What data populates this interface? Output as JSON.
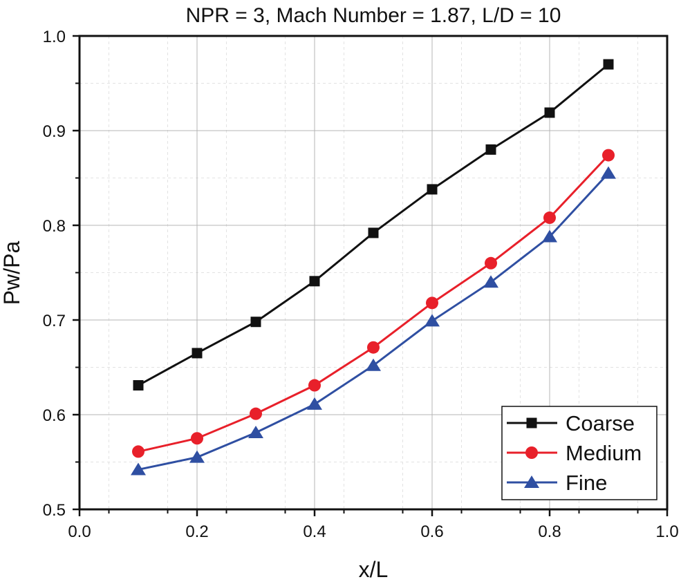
{
  "chart_data": {
    "type": "line",
    "title": "NPR = 3, Mach Number = 1.87, L/D = 10",
    "xlabel": "x/L",
    "ylabel": "Pw/Pa",
    "xlim": [
      0.0,
      1.0
    ],
    "ylim": [
      0.5,
      1.0
    ],
    "xticks": [
      "0.0",
      "0.2",
      "0.4",
      "0.6",
      "0.8",
      "1.0"
    ],
    "yticks": [
      "0.5",
      "0.6",
      "0.7",
      "0.8",
      "0.9",
      "1.0"
    ],
    "grid": true,
    "legend_position": "bottom-right",
    "x": [
      0.1,
      0.2,
      0.3,
      0.4,
      0.5,
      0.6,
      0.7,
      0.8,
      0.9
    ],
    "series": [
      {
        "name": "Coarse",
        "color": "#111111",
        "marker": "square",
        "values": [
          0.631,
          0.665,
          0.698,
          0.741,
          0.792,
          0.838,
          0.88,
          0.919,
          0.97
        ]
      },
      {
        "name": "Medium",
        "color": "#e8202a",
        "marker": "circle",
        "values": [
          0.561,
          0.575,
          0.601,
          0.631,
          0.671,
          0.718,
          0.76,
          0.808,
          0.874
        ]
      },
      {
        "name": "Fine",
        "color": "#2f4fa2",
        "marker": "triangle",
        "values": [
          0.542,
          0.555,
          0.581,
          0.611,
          0.652,
          0.699,
          0.74,
          0.788,
          0.855
        ]
      }
    ]
  }
}
